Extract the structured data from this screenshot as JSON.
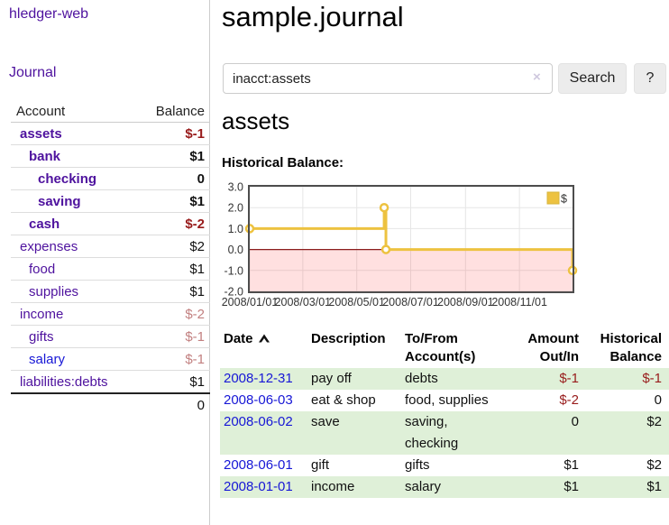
{
  "colors": {
    "accent_purple": "#4e129e",
    "link_blue": "#1717d6",
    "negative_red": "#981b1b",
    "muted_negative": "#c28080",
    "row_stripe_green": "#dff0d8",
    "series_yellow": "#edc240"
  },
  "sidebar": {
    "app_title": "hledger-web",
    "nav": {
      "journal": "Journal"
    },
    "accounts_header": {
      "account": "Account",
      "balance": "Balance"
    },
    "accounts": [
      {
        "name": "assets",
        "balance": "$-1",
        "indent": 1,
        "bold": true,
        "balance_style": "negative"
      },
      {
        "name": "bank",
        "balance": "$1",
        "indent": 2,
        "bold": true,
        "balance_style": "normal"
      },
      {
        "name": "checking",
        "balance": "0",
        "indent": 3,
        "bold": true,
        "balance_style": "normal"
      },
      {
        "name": "saving",
        "balance": "$1",
        "indent": 3,
        "bold": true,
        "balance_style": "normal"
      },
      {
        "name": "cash",
        "balance": "$-2",
        "indent": 2,
        "bold": true,
        "balance_style": "negative"
      },
      {
        "name": "expenses",
        "balance": "$2",
        "indent": 1,
        "bold": false,
        "balance_style": "normal"
      },
      {
        "name": "food",
        "balance": "$1",
        "indent": 2,
        "bold": false,
        "balance_style": "normal"
      },
      {
        "name": "supplies",
        "balance": "$1",
        "indent": 2,
        "bold": false,
        "balance_style": "normal"
      },
      {
        "name": "income",
        "balance": "$-2",
        "indent": 1,
        "bold": false,
        "balance_style": "muted"
      },
      {
        "name": "gifts",
        "balance": "$-1",
        "indent": 2,
        "bold": false,
        "balance_style": "muted"
      },
      {
        "name": "salary",
        "balance": "$-1",
        "indent": 2,
        "bold": false,
        "balance_style": "muted",
        "name_style": "blue"
      },
      {
        "name": "liabilities:debts",
        "balance": "$1",
        "indent": 1,
        "bold": false,
        "balance_style": "normal"
      }
    ],
    "total": "0"
  },
  "main": {
    "title": "sample.journal",
    "search": {
      "value": "inacct:assets",
      "clear_icon": "×",
      "search_button": "Search",
      "help_button": "?"
    },
    "account_heading": "assets"
  },
  "chart_data": {
    "type": "line",
    "title": "Historical Balance:",
    "legend": [
      {
        "label": "$",
        "color": "#edc240"
      }
    ],
    "legend_position": "top-right",
    "grid": true,
    "xlim": [
      "2008-01-01",
      "2008-12-31"
    ],
    "ylim": [
      -2,
      3
    ],
    "x_ticks": [
      {
        "date": "2008-01-01",
        "label": "2008/01/01"
      },
      {
        "date": "2008-03-01",
        "label": "2008/03/01"
      },
      {
        "date": "2008-05-01",
        "label": "2008/05/01"
      },
      {
        "date": "2008-07-01",
        "label": "2008/07/01"
      },
      {
        "date": "2008-09-01",
        "label": "2008/09/01"
      },
      {
        "date": "2008-11-01",
        "label": "2008/11/01"
      }
    ],
    "y_ticks": [
      {
        "value": 3,
        "label": "3.0"
      },
      {
        "value": 2,
        "label": "2.0"
      },
      {
        "value": 1,
        "label": "1.0"
      },
      {
        "value": 0,
        "label": "0.0"
      },
      {
        "value": -1,
        "label": "-1.0"
      },
      {
        "value": -2,
        "label": "-2.0"
      }
    ],
    "series": [
      {
        "name": "$",
        "color": "#edc240",
        "steps": true,
        "points": [
          [
            "2008-01-01",
            1
          ],
          [
            "2008-06-01",
            2
          ],
          [
            "2008-06-03",
            0
          ],
          [
            "2008-12-31",
            -1
          ]
        ]
      }
    ],
    "negative_region": {
      "from": 0,
      "to": -2,
      "fill": "rgba(255,0,0,0.12)"
    },
    "zero_line_color": "#8b1d1d"
  },
  "transactions": {
    "headers": [
      {
        "label": "Date",
        "sorted": "asc"
      },
      {
        "label": "Description"
      },
      {
        "label": "To/From Account(s)"
      },
      {
        "label": "Amount Out/In"
      },
      {
        "label": "Historical Balance"
      }
    ],
    "rows": [
      {
        "date": "2008-12-31",
        "description": "pay off",
        "accounts": "debts",
        "amount": "$-1",
        "amount_negative": true,
        "balance": "$-1",
        "balance_negative": true
      },
      {
        "date": "2008-06-03",
        "description": "eat & shop",
        "accounts": "food, supplies",
        "amount": "$-2",
        "amount_negative": true,
        "balance": "0",
        "balance_negative": false
      },
      {
        "date": "2008-06-02",
        "description": "save",
        "accounts": "saving, checking",
        "accounts_wrap": true,
        "amount": "0",
        "amount_negative": false,
        "balance": "$2",
        "balance_negative": false
      },
      {
        "date": "2008-06-01",
        "description": "gift",
        "accounts": "gifts",
        "amount": "$1",
        "amount_negative": false,
        "balance": "$2",
        "balance_negative": false
      },
      {
        "date": "2008-01-01",
        "description": "income",
        "accounts": "salary",
        "amount": "$1",
        "amount_negative": false,
        "balance": "$1",
        "balance_negative": false
      }
    ]
  }
}
